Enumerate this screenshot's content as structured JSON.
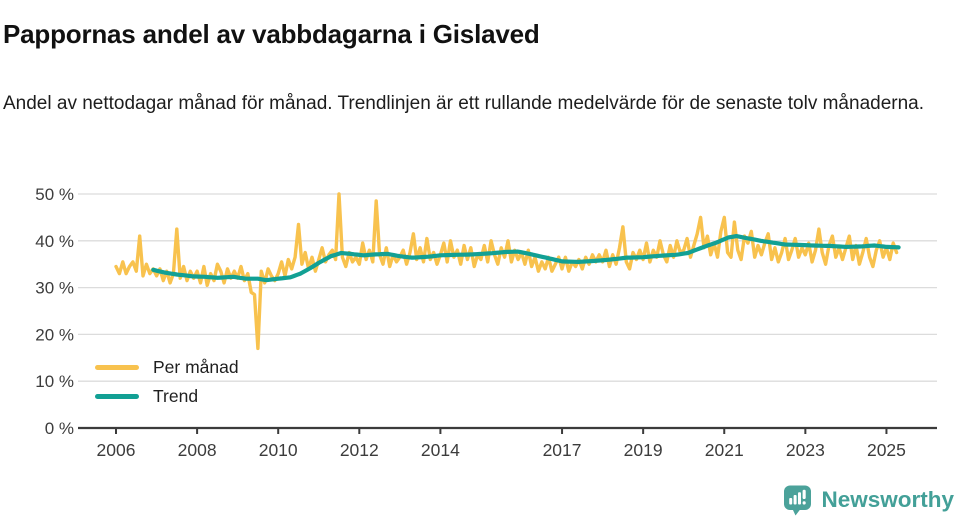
{
  "header": {
    "title": "Pappornas andel av vabbdagarna i Gislaved",
    "subtitle": "Andel av nettodagar månad för månad. Trendlinjen är ett rullande medelvärde för de senaste tolv månaderna."
  },
  "footer": {
    "brand": "Newsworthy",
    "brand_icon": "speech-bubble-bar-chart-icon"
  },
  "colors": {
    "per_manad_line": "#F8C24E",
    "trend_line": "#12A094",
    "grid": "#dcdcdc",
    "axis": "#3b3b3b",
    "tick_text": "#3c3c3c",
    "brand_teal": "#43A098"
  },
  "chart_data": {
    "type": "line",
    "title": "Pappornas andel av vabbdagarna i Gislaved",
    "subtitle": "Andel av nettodagar månad för månad. Trendlinjen är ett rullande medelvärde för de senaste tolv månaderna.",
    "grid": true,
    "legend_position": "inside-bottom-left",
    "x_axis": {
      "ticks": [
        2006,
        2008,
        2010,
        2012,
        2014,
        2017,
        2019,
        2021,
        2023,
        2025
      ],
      "range": [
        2005.1,
        2025.6
      ]
    },
    "y_axis": {
      "unit": "%",
      "tick_values": [
        0,
        10,
        20,
        30,
        40,
        50
      ],
      "tick_labels": [
        "0 %",
        "10 %",
        "20 %",
        "30 %",
        "40 %",
        "50 %"
      ],
      "range": [
        0,
        50
      ]
    },
    "series": [
      {
        "name": "Per månad",
        "color": "#F8C24E",
        "frequency": "monthly",
        "start": "2006-01",
        "end": "2025-04",
        "values": [
          34.5,
          33.0,
          35.5,
          33.0,
          34.5,
          35.5,
          33.5,
          41.0,
          32.5,
          35.0,
          33.0,
          34.0,
          32.5,
          34.0,
          31.5,
          33.5,
          31.0,
          33.0,
          42.5,
          32.0,
          34.5,
          31.5,
          33.5,
          32.0,
          33.5,
          31.0,
          34.5,
          30.5,
          33.0,
          31.5,
          35.0,
          33.5,
          31.0,
          34.0,
          32.0,
          33.5,
          32.0,
          34.5,
          31.5,
          33.0,
          29.0,
          28.5,
          17.0,
          33.5,
          31.0,
          34.0,
          32.5,
          31.5,
          33.0,
          35.5,
          32.5,
          36.0,
          34.0,
          36.5,
          43.5,
          35.0,
          37.5,
          34.0,
          36.5,
          33.5,
          36.0,
          38.5,
          35.5,
          37.0,
          38.0,
          36.0,
          50.0,
          36.5,
          34.5,
          37.5,
          35.5,
          36.5,
          35.0,
          39.5,
          36.0,
          38.0,
          35.5,
          48.5,
          37.0,
          35.0,
          38.5,
          34.5,
          37.0,
          35.5,
          36.5,
          38.0,
          35.0,
          37.5,
          41.5,
          36.0,
          38.5,
          35.5,
          40.5,
          36.0,
          37.5,
          35.0,
          37.0,
          39.5,
          35.5,
          40.0,
          36.5,
          38.0,
          35.0,
          39.0,
          36.0,
          38.5,
          34.5,
          37.0,
          36.0,
          39.0,
          35.5,
          40.0,
          37.0,
          35.0,
          38.5,
          36.5,
          40.0,
          35.5,
          38.0,
          36.0,
          37.5,
          35.0,
          38.0,
          34.5,
          36.5,
          33.5,
          35.5,
          34.0,
          36.5,
          33.5,
          35.0,
          36.5,
          34.0,
          36.5,
          33.5,
          35.5,
          34.5,
          36.0,
          34.0,
          36.5,
          35.0,
          37.0,
          35.5,
          37.0,
          35.5,
          38.0,
          34.5,
          37.0,
          35.0,
          38.5,
          43.0,
          35.5,
          34.0,
          37.5,
          36.0,
          38.0,
          36.0,
          39.5,
          35.5,
          38.0,
          36.5,
          40.0,
          37.0,
          35.5,
          39.0,
          36.5,
          40.0,
          37.5,
          38.0,
          40.5,
          36.5,
          39.0,
          41.5,
          45.0,
          38.5,
          41.0,
          37.0,
          39.5,
          36.5,
          42.0,
          45.0,
          37.5,
          36.5,
          44.0,
          38.0,
          36.0,
          41.0,
          39.5,
          42.0,
          36.5,
          39.0,
          37.0,
          39.5,
          41.5,
          36.0,
          38.5,
          35.5,
          37.5,
          40.5,
          36.0,
          38.0,
          40.5,
          36.5,
          38.5,
          37.0,
          39.5,
          35.5,
          38.0,
          42.5,
          37.5,
          35.0,
          39.0,
          41.0,
          36.5,
          38.5,
          36.0,
          38.5,
          41.0,
          36.0,
          39.0,
          35.0,
          37.5,
          40.5,
          36.5,
          34.5,
          38.0,
          40.0,
          36.5,
          38.5,
          36.0,
          39.5,
          37.5
        ]
      },
      {
        "name": "Trend",
        "color": "#12A094",
        "description": "rullande 12-månaders medelvärde",
        "points": [
          [
            2006.92,
            33.8
          ],
          [
            2007.2,
            33.2
          ],
          [
            2007.5,
            32.8
          ],
          [
            2007.9,
            32.4
          ],
          [
            2008.2,
            32.3
          ],
          [
            2008.5,
            32.1
          ],
          [
            2008.9,
            32.3
          ],
          [
            2009.2,
            31.9
          ],
          [
            2009.5,
            31.9
          ],
          [
            2009.7,
            31.6
          ],
          [
            2010.0,
            31.9
          ],
          [
            2010.3,
            32.2
          ],
          [
            2010.55,
            33.0
          ],
          [
            2010.8,
            34.2
          ],
          [
            2011.0,
            35.3
          ],
          [
            2011.3,
            36.7
          ],
          [
            2011.55,
            37.4
          ],
          [
            2011.8,
            37.2
          ],
          [
            2012.1,
            36.9
          ],
          [
            2012.4,
            37.1
          ],
          [
            2012.7,
            37.2
          ],
          [
            2013.0,
            36.7
          ],
          [
            2013.3,
            36.4
          ],
          [
            2013.7,
            36.6
          ],
          [
            2014.0,
            36.9
          ],
          [
            2014.4,
            37.0
          ],
          [
            2014.8,
            37.1
          ],
          [
            2015.2,
            37.3
          ],
          [
            2015.6,
            37.6
          ],
          [
            2015.9,
            37.7
          ],
          [
            2016.2,
            37.2
          ],
          [
            2016.6,
            36.4
          ],
          [
            2017.0,
            35.6
          ],
          [
            2017.4,
            35.5
          ],
          [
            2017.8,
            35.7
          ],
          [
            2018.2,
            36.0
          ],
          [
            2018.6,
            36.4
          ],
          [
            2019.0,
            36.5
          ],
          [
            2019.4,
            36.8
          ],
          [
            2019.8,
            37.0
          ],
          [
            2020.1,
            37.4
          ],
          [
            2020.5,
            38.7
          ],
          [
            2020.8,
            39.6
          ],
          [
            2021.1,
            40.7
          ],
          [
            2021.3,
            41.0
          ],
          [
            2021.6,
            40.5
          ],
          [
            2021.9,
            40.0
          ],
          [
            2022.2,
            39.6
          ],
          [
            2022.5,
            39.2
          ],
          [
            2022.9,
            39.1
          ],
          [
            2023.2,
            39.0
          ],
          [
            2023.6,
            38.9
          ],
          [
            2024.0,
            38.7
          ],
          [
            2024.4,
            38.8
          ],
          [
            2024.7,
            39.0
          ],
          [
            2025.0,
            38.7
          ],
          [
            2025.3,
            38.6
          ]
        ]
      }
    ]
  }
}
